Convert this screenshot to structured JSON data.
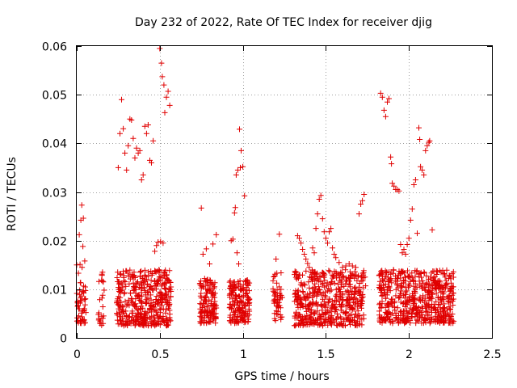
{
  "chart_data": {
    "type": "scatter",
    "title": "Day 232 of 2022, Rate Of TEC Index for receiver djig",
    "xlabel": "GPS time / hours",
    "ylabel": "ROTI / TECUs",
    "xlim": [
      0,
      2.5
    ],
    "ylim": [
      0,
      0.06
    ],
    "grid": true,
    "marker": "+",
    "marker_color": "#e00000",
    "xticks": [
      "0",
      "0.5",
      "1",
      "1.5",
      "2",
      "2.5"
    ],
    "yticks": [
      "0",
      "0.01",
      "0.02",
      "0.03",
      "0.04",
      "0.05",
      "0.06"
    ],
    "points": [
      [
        0.0,
        0.015
      ],
      [
        0.005,
        0.0065
      ],
      [
        0.01,
        0.0133
      ],
      [
        0.012,
        0.0045
      ],
      [
        0.015,
        0.0212
      ],
      [
        0.018,
        0.0098
      ],
      [
        0.02,
        0.0151
      ],
      [
        0.022,
        0.0036
      ],
      [
        0.025,
        0.0242
      ],
      [
        0.027,
        0.0076
      ],
      [
        0.03,
        0.0273
      ],
      [
        0.032,
        0.0145
      ],
      [
        0.035,
        0.0055
      ],
      [
        0.037,
        0.0188
      ],
      [
        0.04,
        0.0246
      ],
      [
        0.042,
        0.0092
      ],
      [
        0.045,
        0.0037
      ],
      [
        0.048,
        0.0158
      ],
      [
        0.05,
        0.0068
      ],
      [
        0.15,
        0.0026
      ],
      [
        0.152,
        0.0082
      ],
      [
        0.155,
        0.0135
      ],
      [
        0.157,
        0.0064
      ],
      [
        0.16,
        0.0115
      ],
      [
        0.162,
        0.0045
      ],
      [
        0.165,
        0.0098
      ],
      [
        0.25,
        0.035
      ],
      [
        0.26,
        0.042
      ],
      [
        0.27,
        0.049
      ],
      [
        0.28,
        0.043
      ],
      [
        0.29,
        0.038
      ],
      [
        0.3,
        0.0345
      ],
      [
        0.31,
        0.0395
      ],
      [
        0.32,
        0.045
      ],
      [
        0.33,
        0.0448
      ],
      [
        0.34,
        0.041
      ],
      [
        0.35,
        0.037
      ],
      [
        0.36,
        0.039
      ],
      [
        0.37,
        0.038
      ],
      [
        0.38,
        0.0385
      ],
      [
        0.39,
        0.0325
      ],
      [
        0.4,
        0.0335
      ],
      [
        0.41,
        0.0435
      ],
      [
        0.42,
        0.042
      ],
      [
        0.43,
        0.0438
      ],
      [
        0.44,
        0.0365
      ],
      [
        0.45,
        0.036
      ],
      [
        0.46,
        0.0405
      ],
      [
        0.47,
        0.0178
      ],
      [
        0.48,
        0.019
      ],
      [
        0.49,
        0.0197
      ],
      [
        0.5,
        0.0595
      ],
      [
        0.505,
        0.0198
      ],
      [
        0.51,
        0.0565
      ],
      [
        0.515,
        0.0537
      ],
      [
        0.52,
        0.0195
      ],
      [
        0.525,
        0.052
      ],
      [
        0.53,
        0.0463
      ],
      [
        0.54,
        0.0495
      ],
      [
        0.55,
        0.0507
      ],
      [
        0.56,
        0.0478
      ],
      [
        0.75,
        0.0267
      ],
      [
        0.76,
        0.0172
      ],
      [
        0.77,
        0.0122
      ],
      [
        0.78,
        0.0183
      ],
      [
        0.8,
        0.0152
      ],
      [
        0.82,
        0.0193
      ],
      [
        0.83,
        0.0105
      ],
      [
        0.84,
        0.0212
      ],
      [
        0.93,
        0.02
      ],
      [
        0.94,
        0.0203
      ],
      [
        0.95,
        0.0257
      ],
      [
        0.955,
        0.0268
      ],
      [
        0.96,
        0.0335
      ],
      [
        0.965,
        0.0175
      ],
      [
        0.97,
        0.0345
      ],
      [
        0.975,
        0.0152
      ],
      [
        0.98,
        0.0429
      ],
      [
        0.985,
        0.035
      ],
      [
        0.99,
        0.0385
      ],
      [
        1.0,
        0.0352
      ],
      [
        1.01,
        0.0292
      ],
      [
        1.2,
        0.0162
      ],
      [
        1.22,
        0.0213
      ],
      [
        1.33,
        0.021
      ],
      [
        1.34,
        0.0205
      ],
      [
        1.35,
        0.0195
      ],
      [
        1.36,
        0.0182
      ],
      [
        1.37,
        0.0172
      ],
      [
        1.38,
        0.0162
      ],
      [
        1.39,
        0.0153
      ],
      [
        1.4,
        0.0145
      ],
      [
        1.41,
        0.0135
      ],
      [
        1.42,
        0.0185
      ],
      [
        1.43,
        0.0175
      ],
      [
        1.44,
        0.0225
      ],
      [
        1.45,
        0.0255
      ],
      [
        1.46,
        0.0285
      ],
      [
        1.47,
        0.0293
      ],
      [
        1.48,
        0.0245
      ],
      [
        1.49,
        0.0218
      ],
      [
        1.5,
        0.0205
      ],
      [
        1.51,
        0.0195
      ],
      [
        1.52,
        0.0218
      ],
      [
        1.53,
        0.0225
      ],
      [
        1.54,
        0.0185
      ],
      [
        1.55,
        0.0172
      ],
      [
        1.56,
        0.0165
      ],
      [
        1.58,
        0.0155
      ],
      [
        1.6,
        0.0145
      ],
      [
        1.62,
        0.0148
      ],
      [
        1.64,
        0.0152
      ],
      [
        1.66,
        0.0148
      ],
      [
        1.68,
        0.0145
      ],
      [
        1.7,
        0.0255
      ],
      [
        1.71,
        0.0275
      ],
      [
        1.72,
        0.0282
      ],
      [
        1.73,
        0.0295
      ],
      [
        1.83,
        0.0503
      ],
      [
        1.84,
        0.0495
      ],
      [
        1.85,
        0.0468
      ],
      [
        1.86,
        0.0455
      ],
      [
        1.87,
        0.0485
      ],
      [
        1.88,
        0.0492
      ],
      [
        1.89,
        0.0372
      ],
      [
        1.895,
        0.0358
      ],
      [
        1.9,
        0.0318
      ],
      [
        1.91,
        0.0312
      ],
      [
        1.92,
        0.0305
      ],
      [
        1.93,
        0.0305
      ],
      [
        1.94,
        0.0302
      ],
      [
        1.95,
        0.0192
      ],
      [
        1.96,
        0.0175
      ],
      [
        1.97,
        0.0182
      ],
      [
        1.98,
        0.0172
      ],
      [
        1.99,
        0.0192
      ],
      [
        2.0,
        0.0205
      ],
      [
        2.01,
        0.0242
      ],
      [
        2.02,
        0.0265
      ],
      [
        2.03,
        0.0315
      ],
      [
        2.04,
        0.0325
      ],
      [
        2.05,
        0.0215
      ],
      [
        2.06,
        0.0432
      ],
      [
        2.065,
        0.0408
      ],
      [
        2.07,
        0.0352
      ],
      [
        2.08,
        0.0345
      ],
      [
        2.09,
        0.0335
      ],
      [
        2.1,
        0.0385
      ],
      [
        2.11,
        0.0395
      ],
      [
        2.12,
        0.0402
      ],
      [
        2.125,
        0.0405
      ],
      [
        2.13,
        0.0125
      ],
      [
        2.14,
        0.0222
      ],
      [
        2.15,
        0.0118
      ],
      [
        2.16,
        0.0118
      ],
      [
        2.17,
        0.0112
      ],
      [
        2.18,
        0.0108
      ],
      [
        2.19,
        0.0105
      ],
      [
        2.2,
        0.0095
      ],
      [
        2.22,
        0.0108
      ],
      [
        2.24,
        0.0122
      ],
      [
        2.26,
        0.0132
      ]
    ],
    "clusters": [
      {
        "x_from": 0.0,
        "x_to": 0.055,
        "y_from": 0.003,
        "y_to": 0.0115,
        "count": 40
      },
      {
        "x_from": 0.13,
        "x_to": 0.16,
        "y_from": 0.0025,
        "y_to": 0.0135,
        "count": 18
      },
      {
        "x_from": 0.24,
        "x_to": 0.57,
        "y_from": 0.0025,
        "y_to": 0.014,
        "count": 430
      },
      {
        "x_from": 0.74,
        "x_to": 0.84,
        "y_from": 0.003,
        "y_to": 0.012,
        "count": 130
      },
      {
        "x_from": 0.92,
        "x_to": 1.04,
        "y_from": 0.003,
        "y_to": 0.012,
        "count": 170
      },
      {
        "x_from": 1.18,
        "x_to": 1.24,
        "y_from": 0.0035,
        "y_to": 0.0135,
        "count": 50
      },
      {
        "x_from": 1.31,
        "x_to": 1.74,
        "y_from": 0.0025,
        "y_to": 0.014,
        "count": 500
      },
      {
        "x_from": 1.82,
        "x_to": 2.27,
        "y_from": 0.003,
        "y_to": 0.014,
        "count": 560
      }
    ]
  }
}
